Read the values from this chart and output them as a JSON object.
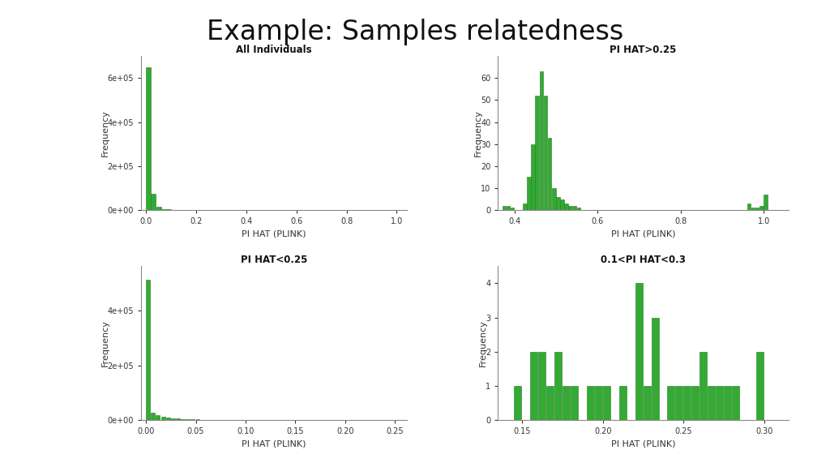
{
  "title": "Example: Samples relatedness",
  "title_fontsize": 24,
  "bar_color": "#33aa33",
  "bar_edgecolor": "#227722",
  "background": "#ffffff",
  "subplots": [
    {
      "title": "All Individuals",
      "xlabel": "PI HAT (PLINK)",
      "ylabel": "Frequency",
      "xlim": [
        -0.02,
        1.04
      ],
      "xticks": [
        0.0,
        0.2,
        0.4,
        0.6,
        0.8,
        1.0
      ],
      "xticklabels": [
        "0.0",
        "0.2",
        "0.4",
        "0.6",
        "0.8",
        "1.0"
      ],
      "ylim": [
        0,
        700000
      ],
      "ytick_labels": [
        "0e+00",
        "2e+05",
        "4e+05",
        "6e+05"
      ],
      "ytick_vals": [
        0,
        200000,
        400000,
        600000
      ],
      "bars_x": [
        0.0,
        0.02,
        0.04,
        0.06,
        0.08,
        0.1,
        0.12,
        0.14
      ],
      "bars_h": [
        650000,
        75000,
        14000,
        6000,
        3000,
        1500,
        800,
        400
      ],
      "bar_width": 0.019
    },
    {
      "title": "PI HAT>0.25",
      "xlabel": "PI HAT (PLINK)",
      "ylabel": "Frequency",
      "xlim": [
        0.36,
        1.06
      ],
      "xticks": [
        0.4,
        0.6,
        0.8,
        1.0
      ],
      "xticklabels": [
        "0.4",
        "0.6",
        "0.8",
        "1.0"
      ],
      "ylim": [
        0,
        70
      ],
      "ytick_labels": [
        "0",
        "10",
        "20",
        "30",
        "40",
        "50",
        "60"
      ],
      "ytick_vals": [
        0,
        10,
        20,
        30,
        40,
        50,
        60
      ],
      "bars_x": [
        0.37,
        0.38,
        0.39,
        0.42,
        0.43,
        0.44,
        0.45,
        0.46,
        0.47,
        0.48,
        0.49,
        0.5,
        0.51,
        0.52,
        0.53,
        0.54,
        0.55,
        0.96,
        0.97,
        0.98,
        0.99,
        1.0
      ],
      "bars_h": [
        2,
        2,
        1,
        3,
        15,
        30,
        52,
        63,
        52,
        33,
        10,
        6,
        5,
        3,
        2,
        2,
        1,
        3,
        1,
        1,
        2,
        7
      ],
      "bar_width": 0.009
    },
    {
      "title": "PI HAT<0.25",
      "xlabel": "PI HAT (PLINK)",
      "ylabel": "Frequency",
      "xlim": [
        -0.005,
        0.262
      ],
      "xticks": [
        0.0,
        0.05,
        0.1,
        0.15,
        0.2,
        0.25
      ],
      "xticklabels": [
        "0.00",
        "0.05",
        "0.10",
        "0.15",
        "0.20",
        "0.25"
      ],
      "ylim": [
        0,
        560000
      ],
      "ytick_labels": [
        "0e+00",
        "2e+05",
        "4e+05"
      ],
      "ytick_vals": [
        0,
        200000,
        400000
      ],
      "bars_x": [
        0.0,
        0.005,
        0.01,
        0.015,
        0.02,
        0.025,
        0.03,
        0.035,
        0.04,
        0.045,
        0.05,
        0.055,
        0.06,
        0.07,
        0.08,
        0.09,
        0.1,
        0.11,
        0.12,
        0.13,
        0.14,
        0.15,
        0.16,
        0.17,
        0.18,
        0.19,
        0.2,
        0.21,
        0.22,
        0.23,
        0.24
      ],
      "bars_h": [
        510000,
        28000,
        18000,
        13000,
        10000,
        8000,
        6500,
        5200,
        4200,
        3600,
        3000,
        2500,
        2100,
        1700,
        1400,
        1100,
        900,
        720,
        580,
        470,
        380,
        310,
        250,
        205,
        170,
        140,
        115,
        95,
        78,
        63,
        50
      ],
      "bar_width": 0.004
    },
    {
      "title": "0.1<PI HAT<0.3",
      "xlabel": "PI HAT (PLINK)",
      "ylabel": "Frequency",
      "xlim": [
        0.135,
        0.315
      ],
      "xticks": [
        0.15,
        0.2,
        0.25,
        0.3
      ],
      "xticklabels": [
        "0.15",
        "0.20",
        "0.25",
        "0.30"
      ],
      "ylim": [
        0,
        4.5
      ],
      "ytick_labels": [
        "0",
        "1",
        "2",
        "3",
        "4"
      ],
      "ytick_vals": [
        0,
        1,
        2,
        3,
        4
      ],
      "bars_x": [
        0.145,
        0.155,
        0.16,
        0.165,
        0.17,
        0.175,
        0.18,
        0.19,
        0.195,
        0.2,
        0.205,
        0.21,
        0.215,
        0.22,
        0.225,
        0.23,
        0.24,
        0.245,
        0.25,
        0.255,
        0.26,
        0.265,
        0.27,
        0.275,
        0.28,
        0.285,
        0.295
      ],
      "bars_h": [
        1,
        2,
        2,
        1,
        2,
        1,
        1,
        1,
        1,
        1,
        0,
        1,
        0,
        4,
        1,
        3,
        1,
        1,
        1,
        1,
        2,
        1,
        1,
        1,
        1,
        0,
        2
      ],
      "bar_width": 0.0045
    }
  ]
}
